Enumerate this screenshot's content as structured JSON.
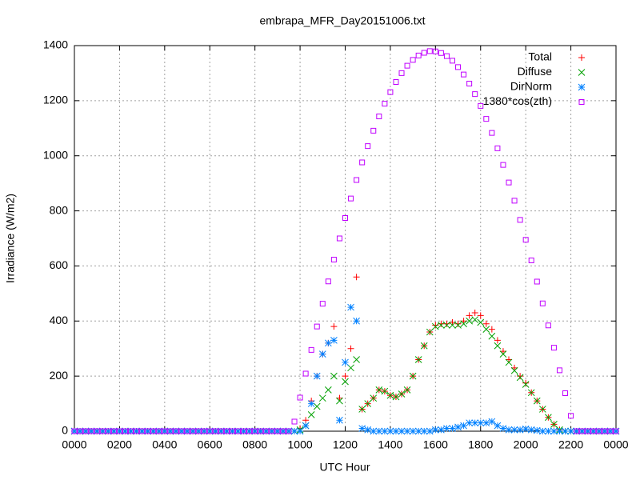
{
  "chart_data": {
    "type": "scatter",
    "title": "embrapa_MFR_Day20151006.txt",
    "xlabel": "UTC Hour",
    "ylabel": "Irradiance (W/m2)",
    "xlim": [
      0,
      24
    ],
    "ylim": [
      0,
      1400
    ],
    "xticks": [
      {
        "value": 0,
        "label": "0000"
      },
      {
        "value": 2,
        "label": "0200"
      },
      {
        "value": 4,
        "label": "0400"
      },
      {
        "value": 6,
        "label": "0600"
      },
      {
        "value": 8,
        "label": "0800"
      },
      {
        "value": 10,
        "label": "1000"
      },
      {
        "value": 12,
        "label": "1200"
      },
      {
        "value": 14,
        "label": "1400"
      },
      {
        "value": 16,
        "label": "1600"
      },
      {
        "value": 18,
        "label": "1800"
      },
      {
        "value": 20,
        "label": "2000"
      },
      {
        "value": 22,
        "label": "2200"
      },
      {
        "value": 24,
        "label": "0000"
      }
    ],
    "yticks": [
      0,
      200,
      400,
      600,
      800,
      1000,
      1200,
      1400
    ],
    "grid": true,
    "legend": "upper right",
    "x": [
      0,
      0.25,
      0.5,
      0.75,
      1,
      1.25,
      1.5,
      1.75,
      2,
      2.25,
      2.5,
      2.75,
      3,
      3.25,
      3.5,
      3.75,
      4,
      4.25,
      4.5,
      4.75,
      5,
      5.25,
      5.5,
      5.75,
      6,
      6.25,
      6.5,
      6.75,
      7,
      7.25,
      7.5,
      7.75,
      8,
      8.25,
      8.5,
      8.75,
      9,
      9.25,
      9.5,
      9.75,
      10,
      10.25,
      10.5,
      10.75,
      11,
      11.25,
      11.5,
      11.75,
      12,
      12.25,
      12.5,
      12.75,
      13,
      13.25,
      13.5,
      13.75,
      14,
      14.25,
      14.5,
      14.75,
      15,
      15.25,
      15.5,
      15.75,
      16,
      16.25,
      16.5,
      16.75,
      17,
      17.25,
      17.5,
      17.75,
      18,
      18.25,
      18.5,
      18.75,
      19,
      19.25,
      19.5,
      19.75,
      20,
      20.25,
      20.5,
      20.75,
      21,
      21.25,
      21.5,
      21.75,
      22,
      22.25,
      22.5,
      22.75,
      23,
      23.25,
      23.5,
      23.75,
      24
    ],
    "series": [
      {
        "name": "Total",
        "color": "#ff0000",
        "marker": "plus",
        "values": [
          0,
          0,
          0,
          0,
          0,
          0,
          0,
          0,
          0,
          0,
          0,
          0,
          0,
          0,
          0,
          0,
          0,
          0,
          0,
          0,
          0,
          0,
          0,
          0,
          0,
          0,
          0,
          0,
          0,
          0,
          0,
          0,
          0,
          0,
          0,
          0,
          0,
          0,
          0,
          0,
          10,
          40,
          110,
          200,
          280,
          320,
          380,
          120,
          200,
          300,
          560,
          80,
          100,
          120,
          150,
          145,
          130,
          125,
          135,
          150,
          200,
          260,
          310,
          360,
          385,
          390,
          390,
          395,
          390,
          400,
          420,
          430,
          420,
          390,
          370,
          330,
          290,
          260,
          230,
          200,
          175,
          140,
          110,
          80,
          50,
          25,
          5,
          0,
          0,
          0,
          0,
          0,
          0,
          0,
          0,
          0,
          0
        ]
      },
      {
        "name": "Diffuse",
        "color": "#00a000",
        "marker": "cross",
        "values": [
          0,
          0,
          0,
          0,
          0,
          0,
          0,
          0,
          0,
          0,
          0,
          0,
          0,
          0,
          0,
          0,
          0,
          0,
          0,
          0,
          0,
          0,
          0,
          0,
          0,
          0,
          0,
          0,
          0,
          0,
          0,
          0,
          0,
          0,
          0,
          0,
          0,
          0,
          0,
          0,
          5,
          20,
          60,
          90,
          120,
          150,
          200,
          110,
          180,
          230,
          260,
          80,
          100,
          120,
          150,
          145,
          130,
          125,
          135,
          150,
          200,
          260,
          310,
          360,
          380,
          385,
          385,
          385,
          385,
          390,
          400,
          405,
          395,
          370,
          345,
          310,
          280,
          250,
          220,
          195,
          170,
          140,
          110,
          80,
          50,
          25,
          5,
          0,
          0,
          0,
          0,
          0,
          0,
          0,
          0,
          0,
          0
        ]
      },
      {
        "name": "DirNorm",
        "color": "#0080ff",
        "marker": "star",
        "values": [
          0,
          0,
          0,
          0,
          0,
          0,
          0,
          0,
          0,
          0,
          0,
          0,
          0,
          0,
          0,
          0,
          0,
          0,
          0,
          0,
          0,
          0,
          0,
          0,
          0,
          0,
          0,
          0,
          0,
          0,
          0,
          0,
          0,
          0,
          0,
          0,
          0,
          0,
          0,
          0,
          0,
          20,
          100,
          200,
          280,
          320,
          330,
          40,
          250,
          450,
          400,
          10,
          5,
          0,
          0,
          0,
          0,
          0,
          0,
          0,
          0,
          0,
          0,
          0,
          5,
          5,
          10,
          10,
          15,
          20,
          30,
          30,
          30,
          30,
          35,
          20,
          10,
          5,
          5,
          5,
          8,
          5,
          3,
          0,
          0,
          0,
          0,
          0,
          0,
          0,
          0,
          0,
          0,
          0,
          0,
          0,
          0
        ]
      },
      {
        "name": "1380*cos(zth)",
        "color": "#c000ff",
        "marker": "square",
        "values": [
          0,
          0,
          0,
          0,
          0,
          0,
          0,
          0,
          0,
          0,
          0,
          0,
          0,
          0,
          0,
          0,
          0,
          0,
          0,
          0,
          0,
          0,
          0,
          0,
          0,
          0,
          0,
          0,
          0,
          0,
          0,
          0,
          0,
          0,
          0,
          0,
          0,
          0,
          0,
          35,
          122,
          209,
          295,
          380,
          463,
          544,
          623,
          700,
          774,
          845,
          912,
          976,
          1035,
          1091,
          1143,
          1189,
          1231,
          1268,
          1300,
          1327,
          1348,
          1364,
          1374,
          1380,
          1379,
          1373,
          1362,
          1345,
          1322,
          1295,
          1262,
          1224,
          1181,
          1134,
          1083,
          1027,
          967,
          903,
          837,
          767,
          695,
          620,
          543,
          464,
          384,
          303,
          221,
          138,
          56,
          0,
          0,
          0,
          0,
          0,
          0,
          0,
          0
        ]
      }
    ]
  }
}
